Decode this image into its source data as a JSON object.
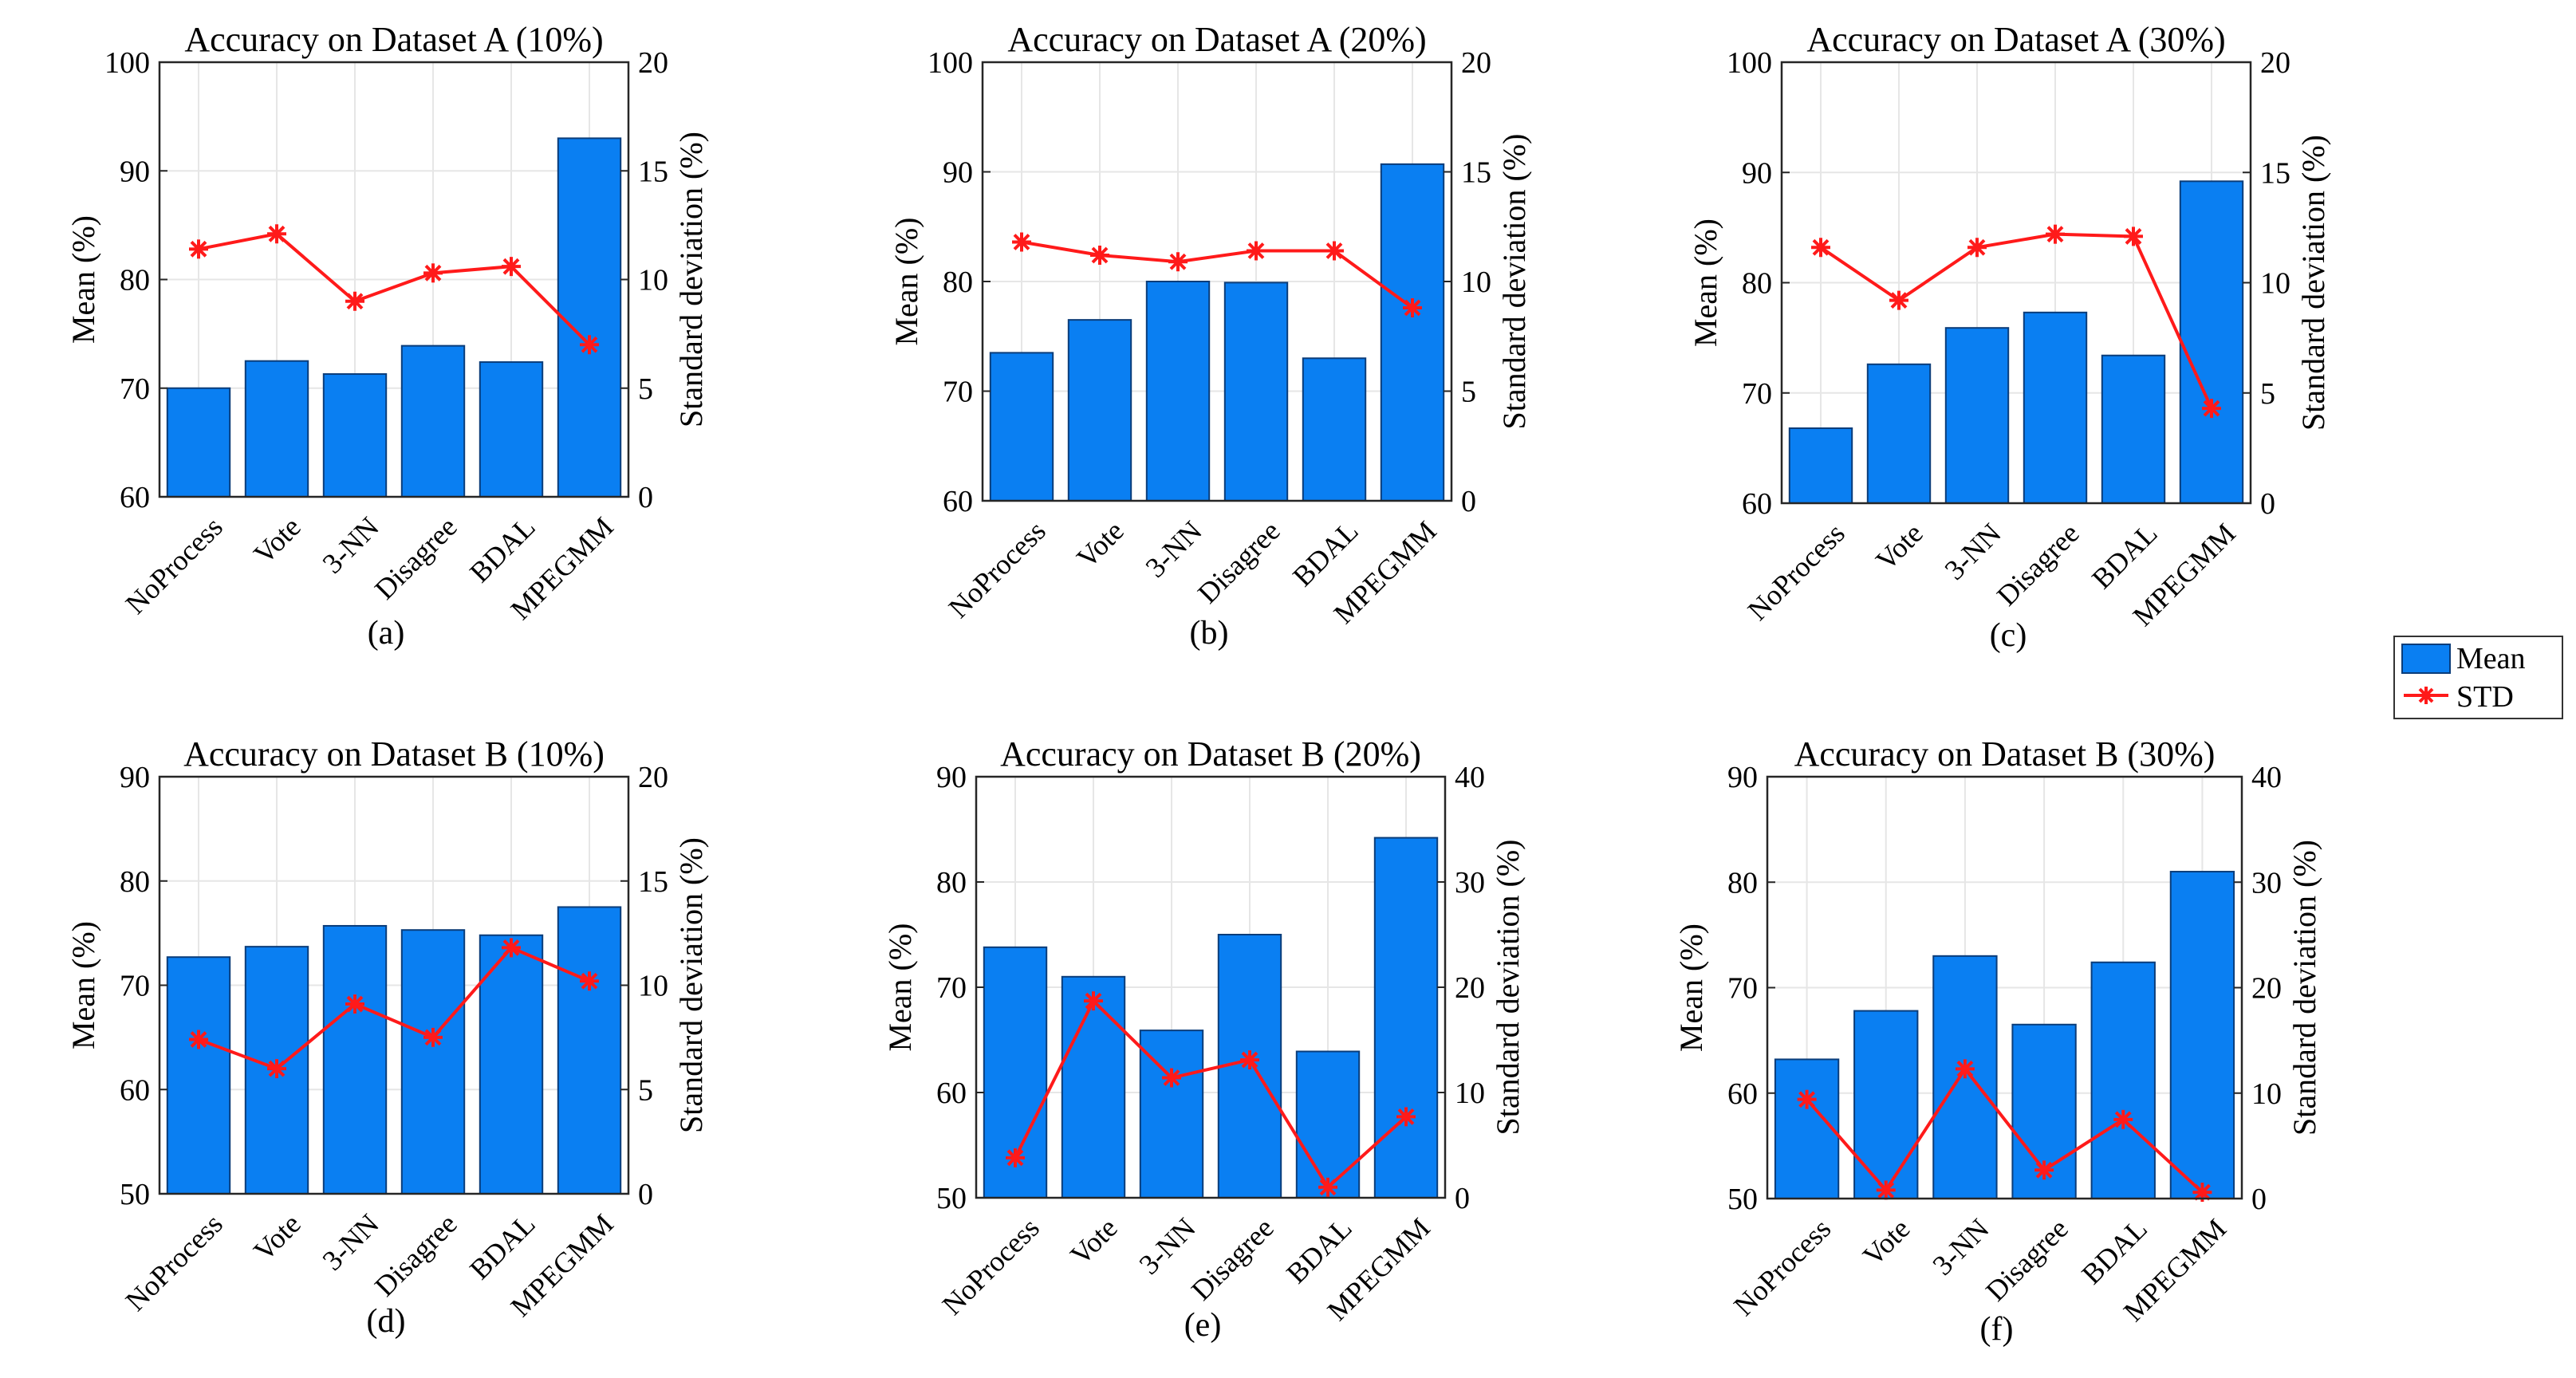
{
  "legend": {
    "mean_label": "Mean",
    "std_label": "STD"
  },
  "colors": {
    "bar": "#0a7ff2",
    "bar_edge": "#0b3d7a",
    "line": "#ff1a1a",
    "grid": "#e6e6e6"
  },
  "chart_data": [
    {
      "type": "bar",
      "title": "Accuracy on Dataset A (10%)",
      "caption": "(a)",
      "categories": [
        "NoProcess",
        "Vote",
        "3-NN",
        "Disagree",
        "BDAL",
        "MPEGMM"
      ],
      "ylabel": "Mean (%)",
      "y2label": "Standard deviation (%)",
      "ylim": [
        60,
        100
      ],
      "yticks": [
        60,
        70,
        80,
        90,
        100
      ],
      "y2lim": [
        0,
        20
      ],
      "y2ticks": [
        0,
        5,
        10,
        15,
        20
      ],
      "series": [
        {
          "name": "Mean",
          "axis": "left",
          "values": [
            70.0,
            72.5,
            71.3,
            73.9,
            72.4,
            93.0
          ]
        },
        {
          "name": "STD",
          "axis": "right",
          "values": [
            11.4,
            12.1,
            9.0,
            10.3,
            10.6,
            7.0
          ]
        }
      ]
    },
    {
      "type": "bar",
      "title": "Accuracy on Dataset A (20%)",
      "caption": "(b)",
      "categories": [
        "NoProcess",
        "Vote",
        "3-NN",
        "Disagree",
        "BDAL",
        "MPEGMM"
      ],
      "ylabel": "Mean (%)",
      "y2label": "Standard deviation (%)",
      "ylim": [
        60,
        100
      ],
      "yticks": [
        60,
        70,
        80,
        90,
        100
      ],
      "y2lim": [
        0,
        20
      ],
      "y2ticks": [
        0,
        5,
        10,
        15,
        20
      ],
      "series": [
        {
          "name": "Mean",
          "axis": "left",
          "values": [
            73.5,
            76.5,
            80.0,
            79.9,
            73.0,
            90.7
          ]
        },
        {
          "name": "STD",
          "axis": "right",
          "values": [
            11.8,
            11.2,
            10.9,
            11.4,
            11.4,
            8.8
          ]
        }
      ]
    },
    {
      "type": "bar",
      "title": "Accuracy on Dataset A (30%)",
      "caption": "(c)",
      "categories": [
        "NoProcess",
        "Vote",
        "3-NN",
        "Disagree",
        "BDAL",
        "MPEGMM"
      ],
      "ylabel": "Mean (%)",
      "y2label": "Standard deviation (%)",
      "ylim": [
        60,
        100
      ],
      "yticks": [
        60,
        70,
        80,
        90,
        100
      ],
      "y2lim": [
        0,
        20
      ],
      "y2ticks": [
        0,
        5,
        10,
        15,
        20
      ],
      "series": [
        {
          "name": "Mean",
          "axis": "left",
          "values": [
            66.8,
            72.6,
            75.9,
            77.3,
            73.4,
            89.2
          ]
        },
        {
          "name": "STD",
          "axis": "right",
          "values": [
            11.6,
            9.2,
            11.6,
            12.2,
            12.1,
            4.3
          ]
        }
      ]
    },
    {
      "type": "bar",
      "title": "Accuracy on Dataset B (10%)",
      "caption": "(d)",
      "categories": [
        "NoProcess",
        "Vote",
        "3-NN",
        "Disagree",
        "BDAL",
        "MPEGMM"
      ],
      "ylabel": "Mean (%)",
      "y2label": "Standard deviation (%)",
      "ylim": [
        50,
        90
      ],
      "yticks": [
        50,
        60,
        70,
        80,
        90
      ],
      "y2lim": [
        0,
        20
      ],
      "y2ticks": [
        0,
        5,
        10,
        15,
        20
      ],
      "series": [
        {
          "name": "Mean",
          "axis": "left",
          "values": [
            72.7,
            73.7,
            75.7,
            75.3,
            74.8,
            77.5
          ]
        },
        {
          "name": "STD",
          "axis": "right",
          "values": [
            7.4,
            6.0,
            9.1,
            7.5,
            11.8,
            10.2
          ]
        }
      ]
    },
    {
      "type": "bar",
      "title": "Accuracy on Dataset B (20%)",
      "caption": "(e)",
      "categories": [
        "NoProcess",
        "Vote",
        "3-NN",
        "Disagree",
        "BDAL",
        "MPEGMM"
      ],
      "ylabel": "Mean (%)",
      "y2label": "Standard deviation (%)",
      "ylim": [
        50,
        90
      ],
      "yticks": [
        50,
        60,
        70,
        80,
        90
      ],
      "y2lim": [
        0,
        40
      ],
      "y2ticks": [
        0,
        10,
        20,
        30,
        40
      ],
      "series": [
        {
          "name": "Mean",
          "axis": "left",
          "values": [
            73.8,
            71.0,
            65.9,
            75.0,
            63.9,
            84.2
          ]
        },
        {
          "name": "STD",
          "axis": "right",
          "values": [
            3.8,
            18.7,
            11.4,
            13.1,
            1.0,
            7.7
          ]
        }
      ]
    },
    {
      "type": "bar",
      "title": "Accuracy on Dataset B (30%)",
      "caption": "(f)",
      "categories": [
        "NoProcess",
        "Vote",
        "3-NN",
        "Disagree",
        "BDAL",
        "MPEGMM"
      ],
      "ylabel": "Mean (%)",
      "y2label": "Standard deviation (%)",
      "ylim": [
        50,
        90
      ],
      "yticks": [
        50,
        60,
        70,
        80,
        90
      ],
      "y2lim": [
        0,
        40
      ],
      "y2ticks": [
        0,
        10,
        20,
        30,
        40
      ],
      "series": [
        {
          "name": "Mean",
          "axis": "left",
          "values": [
            63.2,
            67.8,
            73.0,
            66.5,
            72.4,
            81.0
          ]
        },
        {
          "name": "STD",
          "axis": "right",
          "values": [
            9.4,
            0.8,
            12.3,
            2.7,
            7.5,
            0.6
          ]
        }
      ]
    }
  ]
}
